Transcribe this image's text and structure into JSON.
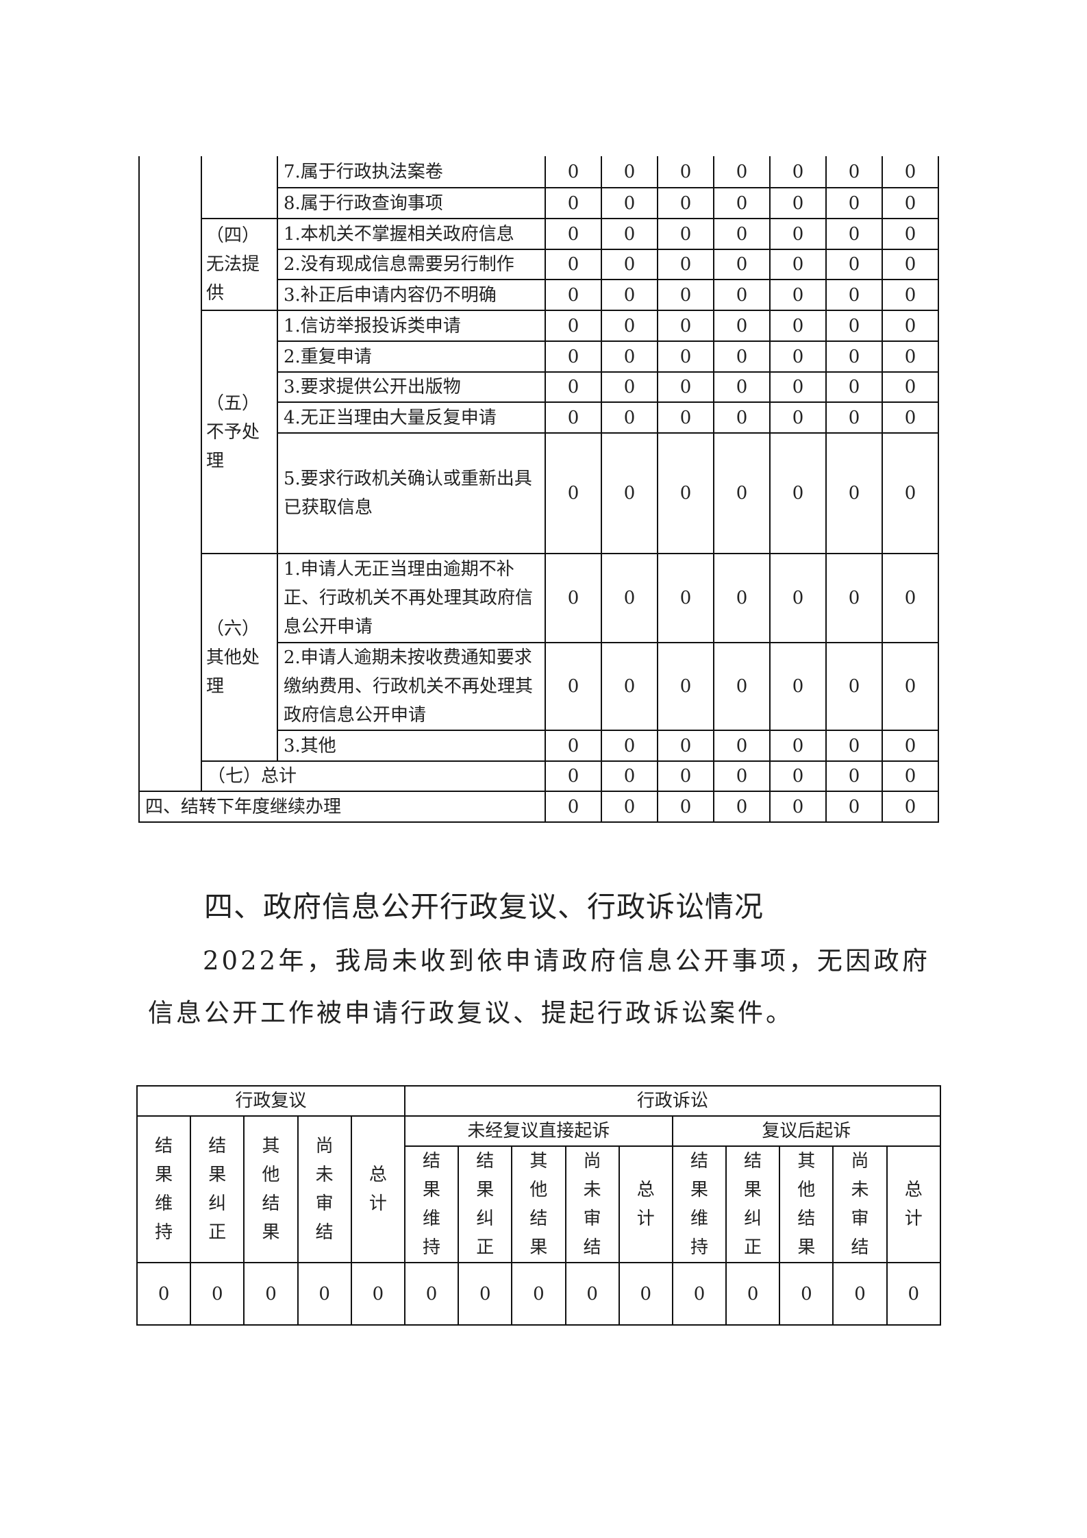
{
  "table1": {
    "rows": [
      {
        "item": "7.属于行政执法案卷",
        "values": [
          0,
          0,
          0,
          0,
          0,
          0,
          0
        ]
      },
      {
        "item": "8.属于行政查询事项",
        "values": [
          0,
          0,
          0,
          0,
          0,
          0,
          0
        ]
      },
      {
        "item": "1.本机关不掌握相关政府信息",
        "values": [
          0,
          0,
          0,
          0,
          0,
          0,
          0
        ]
      },
      {
        "item": "2.没有现成信息需要另行制作",
        "values": [
          0,
          0,
          0,
          0,
          0,
          0,
          0
        ]
      },
      {
        "item": "3.补正后申请内容仍不明确",
        "values": [
          0,
          0,
          0,
          0,
          0,
          0,
          0
        ]
      },
      {
        "item": "1.信访举报投诉类申请",
        "values": [
          0,
          0,
          0,
          0,
          0,
          0,
          0
        ]
      },
      {
        "item": "2.重复申请",
        "values": [
          0,
          0,
          0,
          0,
          0,
          0,
          0
        ]
      },
      {
        "item": "3.要求提供公开出版物",
        "values": [
          0,
          0,
          0,
          0,
          0,
          0,
          0
        ]
      },
      {
        "item": "4.无正当理由大量反复申请",
        "values": [
          0,
          0,
          0,
          0,
          0,
          0,
          0
        ]
      },
      {
        "item": "5.要求行政机关确认或重新出具已获取信息",
        "values": [
          0,
          0,
          0,
          0,
          0,
          0,
          0
        ]
      },
      {
        "item": "1.申请人无正当理由逾期不补正、行政机关不再处理其政府信息公开申请",
        "values": [
          0,
          0,
          0,
          0,
          0,
          0,
          0
        ]
      },
      {
        "item": "2.申请人逾期未按收费通知要求缴纳费用、行政机关不再处理其政府信息公开申请",
        "values": [
          0,
          0,
          0,
          0,
          0,
          0,
          0
        ]
      },
      {
        "item": "3.其他",
        "values": [
          0,
          0,
          0,
          0,
          0,
          0,
          0
        ]
      },
      {
        "item": "（七）总计",
        "values": [
          0,
          0,
          0,
          0,
          0,
          0,
          0
        ]
      },
      {
        "item": "四、结转下年度继续办理",
        "values": [
          0,
          0,
          0,
          0,
          0,
          0,
          0
        ]
      }
    ],
    "categories": {
      "four": "（四）无法提供",
      "five": "（五）不予处理",
      "six": "（六）其他处理"
    }
  },
  "section": {
    "heading": "四、政府信息公开行政复议、行政诉讼情况",
    "paragraph": "2022年，我局未收到依申请政府信息公开事项，无因政府信息公开工作被申请行政复议、提起行政诉讼案件。"
  },
  "table2": {
    "group_review": "行政复议",
    "group_litigation": "行政诉讼",
    "sub_direct": "未经复议直接起诉",
    "sub_after": "复议后起诉",
    "cols": [
      "结果维持",
      "结果纠正",
      "其他结果",
      "尚未审结",
      "总计"
    ],
    "values": [
      0,
      0,
      0,
      0,
      0,
      0,
      0,
      0,
      0,
      0,
      0,
      0,
      0,
      0,
      0
    ]
  }
}
